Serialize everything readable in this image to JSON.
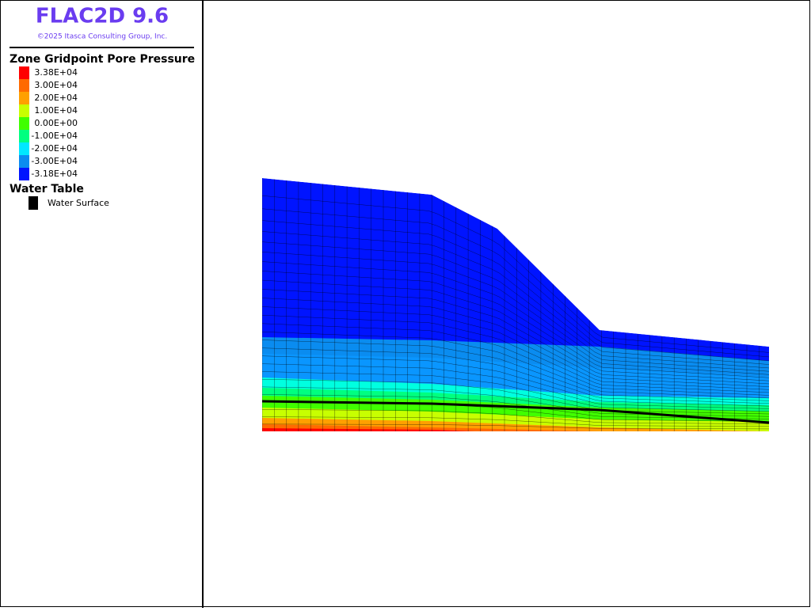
{
  "header": {
    "title": "FLAC2D 9.6",
    "copyright": "©2025 Itasca Consulting Group, Inc."
  },
  "legend": {
    "title": "Zone Gridpoint Pore Pressure",
    "items": [
      {
        "label": "3.38E+04",
        "color": "#ff0000"
      },
      {
        "label": "3.00E+04",
        "color": "#ff6a00"
      },
      {
        "label": "2.00E+04",
        "color": "#ffa000"
      },
      {
        "label": "1.00E+04",
        "color": "#c8ff00"
      },
      {
        "label": "0.00E+00",
        "color": "#40ff00"
      },
      {
        "label": "-1.00E+04",
        "color": "#00ff80"
      },
      {
        "label": "-2.00E+04",
        "color": "#00e8ff"
      },
      {
        "label": "-3.00E+04",
        "color": "#0a8cf0"
      },
      {
        "label": "-3.18E+04",
        "color": "#0014ff"
      }
    ]
  },
  "water_table": {
    "title": "Water Table",
    "item": "Water Surface"
  }
}
